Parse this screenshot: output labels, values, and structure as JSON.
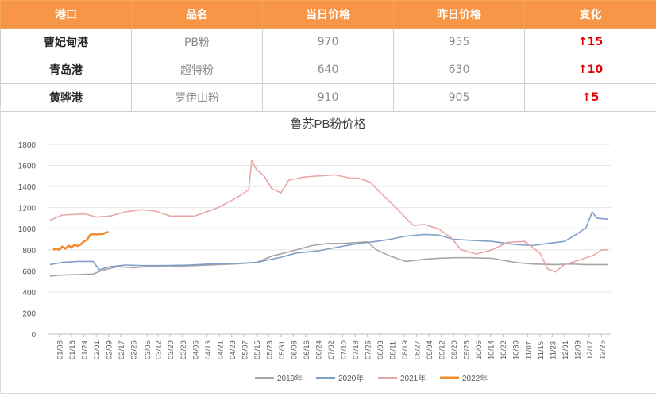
{
  "table": {
    "headers": [
      "港口",
      "品名",
      "当日价格",
      "昨日价格",
      "变化"
    ],
    "rows": [
      {
        "port": "曹妃甸港",
        "product": "PB粉",
        "today": "970",
        "yesterday": "955",
        "change": "15"
      },
      {
        "port": "青岛港",
        "product": "超特粉",
        "today": "640",
        "yesterday": "630",
        "change": "10"
      },
      {
        "port": "黄骅港",
        "product": "罗伊山粉",
        "today": "910",
        "yesterday": "905",
        "change": "5"
      }
    ],
    "arrow_glyph": "↑"
  },
  "colors": {
    "header_bg": "#f79646",
    "up": "#e00000",
    "s2019": "#a6a6a6",
    "s2020": "#7f9fc8",
    "s2021": "#e8a7a7",
    "s2022": "#f08c2e"
  },
  "chart_data": {
    "type": "line",
    "title": "鲁苏PB粉价格",
    "ylim": [
      0,
      1800
    ],
    "yticks": [
      0,
      200,
      400,
      600,
      800,
      1000,
      1200,
      1400,
      1600,
      1800
    ],
    "xticks": [
      "01/08",
      "01/16",
      "01/24",
      "02/01",
      "02/09",
      "02/17",
      "02/25",
      "03/05",
      "03/12",
      "03/20",
      "03/28",
      "04/05",
      "04/13",
      "04/21",
      "04/29",
      "05/07",
      "05/15",
      "05/23",
      "05/31",
      "06/08",
      "06/16",
      "06/24",
      "07/02",
      "07/10",
      "07/18",
      "07/26",
      "08/03",
      "08/11",
      "08/19",
      "08/27",
      "09/04",
      "09/12",
      "09/20",
      "09/28",
      "10/06",
      "10/14",
      "10/22",
      "10/30",
      "11/07",
      "11/15",
      "11/23",
      "12/01",
      "12/09",
      "12/17",
      "12/25"
    ],
    "grid": "horizontal",
    "legend": "bottom",
    "series": [
      {
        "name": "2019年",
        "x": [
          "01/02",
          "01/10",
          "01/20",
          "01/30",
          "02/05",
          "02/15",
          "02/25",
          "03/05",
          "03/20",
          "04/05",
          "04/20",
          "05/01",
          "05/15",
          "05/25",
          "06/05",
          "06/20",
          "07/01",
          "07/10",
          "07/20",
          "07/26",
          "08/01",
          "08/10",
          "08/20",
          "09/01",
          "09/10",
          "09/20",
          "10/01",
          "10/15",
          "10/30",
          "11/10",
          "11/25",
          "12/05",
          "12/15",
          "12/29"
        ],
        "values": [
          550,
          560,
          565,
          570,
          605,
          640,
          630,
          640,
          640,
          650,
          660,
          665,
          680,
          740,
          780,
          840,
          860,
          860,
          870,
          875,
          800,
          740,
          690,
          710,
          720,
          725,
          725,
          720,
          680,
          665,
          660,
          665,
          660,
          660
        ]
      },
      {
        "name": "2020年",
        "x": [
          "01/02",
          "01/10",
          "01/20",
          "01/30",
          "02/03",
          "02/10",
          "02/20",
          "03/01",
          "03/15",
          "04/01",
          "04/15",
          "05/01",
          "05/15",
          "05/31",
          "06/10",
          "06/24",
          "07/05",
          "07/20",
          "08/01",
          "08/10",
          "08/20",
          "09/01",
          "09/10",
          "09/20",
          "10/01",
          "10/15",
          "10/30",
          "11/10",
          "11/20",
          "12/01",
          "12/08",
          "12/15",
          "12/19",
          "12/22",
          "12/29"
        ],
        "values": [
          660,
          680,
          690,
          690,
          610,
          640,
          655,
          650,
          650,
          655,
          665,
          670,
          680,
          730,
          770,
          790,
          820,
          860,
          880,
          900,
          930,
          945,
          940,
          900,
          890,
          880,
          850,
          840,
          860,
          880,
          940,
          1010,
          1160,
          1100,
          1090
        ]
      },
      {
        "name": "2021年",
        "x": [
          "01/02",
          "01/10",
          "01/25",
          "02/01",
          "02/10",
          "02/20",
          "03/01",
          "03/10",
          "03/20",
          "04/05",
          "04/20",
          "04/29",
          "05/04",
          "05/10",
          "05/12",
          "05/15",
          "05/20",
          "05/25",
          "05/31",
          "06/05",
          "06/15",
          "06/24",
          "07/05",
          "07/15",
          "07/20",
          "07/28",
          "08/03",
          "08/10",
          "08/15",
          "08/20",
          "08/25",
          "09/01",
          "09/10",
          "09/15",
          "09/18",
          "09/25",
          "10/05",
          "10/15",
          "10/25",
          "11/05",
          "11/15",
          "11/20",
          "11/25",
          "12/01",
          "12/10",
          "12/20",
          "12/25",
          "12/29"
        ],
        "values": [
          1080,
          1130,
          1140,
          1110,
          1120,
          1160,
          1180,
          1170,
          1120,
          1120,
          1200,
          1270,
          1310,
          1370,
          1650,
          1560,
          1500,
          1380,
          1340,
          1460,
          1490,
          1500,
          1510,
          1480,
          1480,
          1440,
          1350,
          1250,
          1180,
          1100,
          1030,
          1040,
          1000,
          950,
          920,
          800,
          760,
          800,
          870,
          880,
          770,
          620,
          590,
          660,
          700,
          750,
          800,
          800
        ]
      },
      {
        "name": "2022年",
        "x": [
          "01/04",
          "01/06",
          "01/08",
          "01/10",
          "01/12",
          "01/14",
          "01/16",
          "01/18",
          "01/20",
          "01/22",
          "01/24",
          "01/26",
          "01/28",
          "01/30",
          "02/01",
          "02/03",
          "02/05",
          "02/07",
          "02/09"
        ],
        "values": [
          800,
          810,
          800,
          830,
          810,
          840,
          820,
          850,
          835,
          850,
          880,
          895,
          940,
          950,
          945,
          950,
          950,
          960,
          970
        ]
      }
    ]
  }
}
